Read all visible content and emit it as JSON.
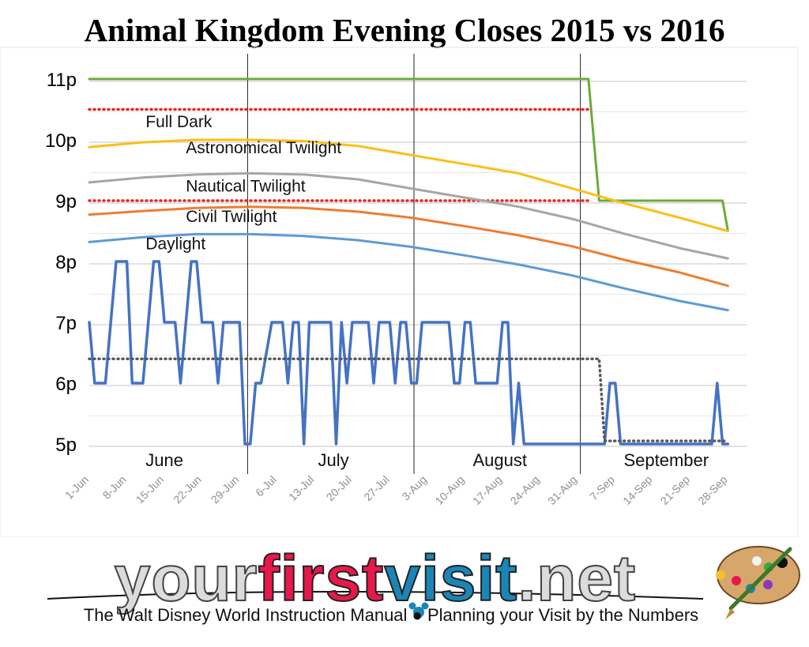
{
  "chart_data": {
    "type": "line",
    "title": "Animal Kingdom Evening Closes 2015 vs 2016",
    "y_tick_labels": [
      "5p",
      "6p",
      "7p",
      "8p",
      "9p",
      "10p",
      "11p"
    ],
    "y_tick_values": [
      17,
      18,
      19,
      20,
      21,
      22,
      23
    ],
    "ylim": [
      17,
      23
    ],
    "x_tick_labels": [
      "1-Jun",
      "8-Jun",
      "15-Jun",
      "22-Jun",
      "29-Jun",
      "6-Jul",
      "13-Jul",
      "20-Jul",
      "27-Jul",
      "3-Aug",
      "10-Aug",
      "17-Aug",
      "24-Aug",
      "31-Aug",
      "7-Sep",
      "14-Sep",
      "21-Sep",
      "28-Sep"
    ],
    "x_tick_values": [
      0,
      7,
      14,
      21,
      28,
      35,
      42,
      49,
      56,
      63,
      70,
      77,
      84,
      91,
      98,
      105,
      112,
      119
    ],
    "xlim": [
      0,
      121
    ],
    "month_dividers": [
      29.5,
      60.5,
      91.5
    ],
    "month_labels": [
      {
        "label": "June",
        "x": 14
      },
      {
        "label": "July",
        "x": 45.5
      },
      {
        "label": "August",
        "x": 76.5
      },
      {
        "label": "September",
        "x": 107.5
      }
    ],
    "grid": true,
    "series": [
      {
        "key": "green",
        "color": "#6aab3a",
        "style": "solid",
        "points": [
          [
            0,
            23
          ],
          [
            93,
            23
          ],
          [
            95,
            21
          ],
          [
            118,
            21
          ],
          [
            119,
            20.5
          ]
        ]
      },
      {
        "key": "red_upper",
        "color": "#e8281e",
        "style": "dotted",
        "points": [
          [
            0,
            22.5
          ],
          [
            93,
            22.5
          ]
        ]
      },
      {
        "key": "red_lower",
        "color": "#e8281e",
        "style": "dotted",
        "points": [
          [
            0,
            21
          ],
          [
            93,
            21
          ]
        ]
      },
      {
        "key": "full_dark",
        "color": "#fbbf15",
        "style": "solid",
        "points": [
          [
            0,
            21.88
          ],
          [
            10,
            21.96
          ],
          [
            20,
            22.0
          ],
          [
            30,
            22.0
          ],
          [
            40,
            21.98
          ],
          [
            50,
            21.9
          ],
          [
            60,
            21.75
          ],
          [
            70,
            21.6
          ],
          [
            80,
            21.45
          ],
          [
            90,
            21.2
          ],
          [
            100,
            20.95
          ],
          [
            110,
            20.72
          ],
          [
            119,
            20.5
          ]
        ]
      },
      {
        "key": "astronomical",
        "color": "#a6a6a6",
        "style": "solid",
        "points": [
          [
            0,
            21.3
          ],
          [
            10,
            21.38
          ],
          [
            20,
            21.43
          ],
          [
            30,
            21.45
          ],
          [
            40,
            21.43
          ],
          [
            50,
            21.35
          ],
          [
            60,
            21.2
          ],
          [
            70,
            21.05
          ],
          [
            80,
            20.9
          ],
          [
            90,
            20.7
          ],
          [
            100,
            20.45
          ],
          [
            110,
            20.22
          ],
          [
            119,
            20.05
          ]
        ]
      },
      {
        "key": "nautical",
        "color": "#ed7d31",
        "style": "solid",
        "points": [
          [
            0,
            20.77
          ],
          [
            10,
            20.83
          ],
          [
            20,
            20.88
          ],
          [
            30,
            20.9
          ],
          [
            40,
            20.88
          ],
          [
            50,
            20.82
          ],
          [
            60,
            20.72
          ],
          [
            70,
            20.58
          ],
          [
            80,
            20.43
          ],
          [
            90,
            20.25
          ],
          [
            100,
            20.02
          ],
          [
            110,
            19.82
          ],
          [
            119,
            19.6
          ]
        ]
      },
      {
        "key": "civil",
        "color": "#5b9bd5",
        "style": "solid",
        "points": [
          [
            0,
            20.32
          ],
          [
            10,
            20.4
          ],
          [
            20,
            20.45
          ],
          [
            30,
            20.45
          ],
          [
            40,
            20.42
          ],
          [
            50,
            20.35
          ],
          [
            60,
            20.24
          ],
          [
            70,
            20.1
          ],
          [
            80,
            19.95
          ],
          [
            90,
            19.77
          ],
          [
            100,
            19.55
          ],
          [
            110,
            19.35
          ],
          [
            119,
            19.2
          ]
        ]
      },
      {
        "key": "closes_2016",
        "color": "#4472c4",
        "style": "solid",
        "points": [
          [
            0,
            19
          ],
          [
            1,
            18
          ],
          [
            3,
            18
          ],
          [
            5,
            20
          ],
          [
            7,
            20
          ],
          [
            8,
            18
          ],
          [
            10,
            18
          ],
          [
            12,
            20
          ],
          [
            13,
            20
          ],
          [
            14,
            19
          ],
          [
            16,
            19
          ],
          [
            17,
            18
          ],
          [
            19,
            20
          ],
          [
            20,
            20
          ],
          [
            21,
            19
          ],
          [
            23,
            19
          ],
          [
            24,
            18
          ],
          [
            25,
            19
          ],
          [
            28,
            19
          ],
          [
            29,
            17
          ],
          [
            30,
            17
          ],
          [
            31,
            18
          ],
          [
            32,
            18
          ],
          [
            34,
            19
          ],
          [
            36,
            19
          ],
          [
            37,
            18
          ],
          [
            38,
            19
          ],
          [
            39,
            19
          ],
          [
            40,
            17
          ],
          [
            41,
            19
          ],
          [
            45,
            19
          ],
          [
            46,
            17
          ],
          [
            47,
            19
          ],
          [
            48,
            18
          ],
          [
            49,
            19
          ],
          [
            52,
            19
          ],
          [
            53,
            18
          ],
          [
            54,
            19
          ],
          [
            56,
            19
          ],
          [
            57,
            18
          ],
          [
            58,
            19
          ],
          [
            59,
            19
          ],
          [
            60,
            18
          ],
          [
            61,
            18
          ],
          [
            62,
            19
          ],
          [
            67,
            19
          ],
          [
            68,
            18
          ],
          [
            69,
            18
          ],
          [
            70,
            19
          ],
          [
            71,
            19
          ],
          [
            72,
            18
          ],
          [
            76,
            18
          ],
          [
            77,
            19
          ],
          [
            78,
            19
          ],
          [
            79,
            17
          ],
          [
            80,
            18
          ],
          [
            81,
            17
          ],
          [
            96,
            17
          ],
          [
            97,
            18
          ],
          [
            98,
            18
          ],
          [
            99,
            17
          ],
          [
            116,
            17
          ],
          [
            117,
            18
          ],
          [
            118,
            17
          ],
          [
            119,
            17
          ]
        ]
      },
      {
        "key": "closes_2015",
        "color": "#595959",
        "style": "dotted",
        "points": [
          [
            0,
            18.4
          ],
          [
            95,
            18.4
          ],
          [
            96,
            17.05
          ],
          [
            119,
            17.05
          ]
        ]
      }
    ],
    "annotations": [
      {
        "text": "Full Dark",
        "x": 10.5,
        "y": 22.21
      },
      {
        "text": "Astronomical Twilight",
        "x": 18,
        "y": 21.78
      },
      {
        "text": "Nautical Twilight",
        "x": 18,
        "y": 21.15
      },
      {
        "text": "Civil Twilight",
        "x": 18,
        "y": 20.65
      },
      {
        "text": "Daylight",
        "x": 10.5,
        "y": 20.2
      }
    ]
  },
  "banner": {
    "logo_part1": "your",
    "logo_part2": "first",
    "logo_part3": "visit",
    "logo_part4": ".net",
    "tagline": "The Walt Disney World Instruction Manual  ●  Planning your Visit by the Numbers"
  }
}
